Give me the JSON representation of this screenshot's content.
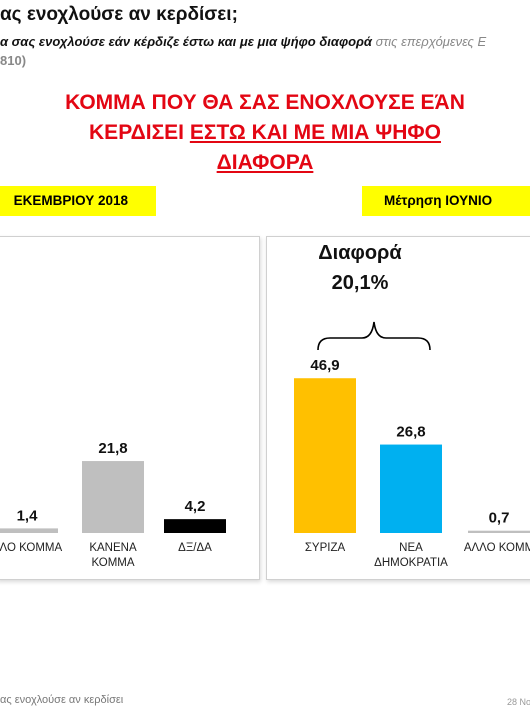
{
  "question": {
    "title": "ας ενοχλούσε αν κερδίσει;",
    "subtitle_main": "α σας ενοχλούσε εάν κέρδιζε έστω και με μια ψήφο διαφορά",
    "subtitle_tail": " στις επερχόμενες Ε",
    "sample": "810)"
  },
  "headline": {
    "line1": "ΚΟΜΜΑ ΠΟΥ ΘΑ ΣΑΣ ΕΝΟΧΛΟΥΣΕ ΕΆΝ",
    "line2_plain": "ΚΕΡΔΙΣΕΙ ",
    "line2_underlined": "ΕΣΤΩ ΚΑΙ ΜΕ ΜΙΑ ΨΗΦΟ",
    "line3_underlined": "ΔΙΑΦΟΡΑ"
  },
  "periods": {
    "left": "ΕΚΕΜΒΡΙΟΥ 2018",
    "right": "Μέτρηση ΙΟΥΝΙΟ"
  },
  "difference": {
    "label": "Διαφορά",
    "value": "20,1%"
  },
  "footer": {
    "left": "ας ενοχλούσε αν κερδίσει",
    "right": "28 Νο"
  },
  "colors": {
    "headline": "#e30613",
    "period_bg": "#ffff00",
    "syriza": "#ffc000",
    "nd": "#00b0f0",
    "grey": "#bfbfbf",
    "black": "#000000"
  },
  "chart_data": [
    {
      "type": "bar",
      "title": "",
      "categories": [
        "ΑΛΛΟ ΚΟΜΜΑ",
        "ΚΑΝΕΝΑ ΚΟΜΜΑ",
        "ΔΞ/ΔΑ"
      ],
      "category_display": [
        "ΛΛΟ ΚΟΜΜΑ",
        "ΚΑΝΕΝΑ\nΚΟΜΜΑ",
        "ΔΞ/ΔΑ"
      ],
      "values": [
        1.4,
        21.8,
        4.2
      ],
      "value_labels": [
        "1,4",
        "21,8",
        "4,2"
      ],
      "colors": [
        "#bfbfbf",
        "#bfbfbf",
        "#000000"
      ],
      "ylim": [
        0,
        50
      ],
      "grid": false
    },
    {
      "type": "bar",
      "title": "",
      "categories": [
        "ΣΥΡΙΖΑ",
        "ΝΕΑ ΔΗΜΟΚΡΑΤΙΑ",
        "ΑΛΛΟ ΚΟΜΜΑ"
      ],
      "category_display": [
        "ΣΥΡΙΖΑ",
        "ΝΕΑ\nΔΗΜΟΚΡΑΤΙΑ",
        "ΑΛΛΟ ΚΟΜΜ"
      ],
      "values": [
        46.9,
        26.8,
        0.7
      ],
      "value_labels": [
        "46,9",
        "26,8",
        "0,7"
      ],
      "colors": [
        "#ffc000",
        "#00b0f0",
        "#bfbfbf"
      ],
      "ylim": [
        0,
        50
      ],
      "grid": false
    }
  ]
}
